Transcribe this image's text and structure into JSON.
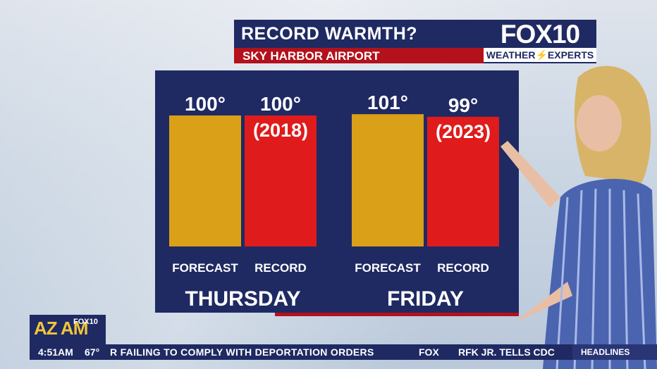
{
  "header": {
    "title": "RECORD WARMTH?",
    "subtitle": "SKY HARBOR AIRPORT",
    "logo_main": "FOX10",
    "logo_sub": "WEATHER⚡EXPERTS"
  },
  "chart_data": {
    "type": "bar",
    "groups": [
      "THURSDAY",
      "FRIDAY"
    ],
    "categories": [
      "FORECAST",
      "RECORD"
    ],
    "series": [
      {
        "values": [
          100,
          101
        ],
        "color": "#d9a018"
      },
      {
        "values": [
          100,
          99
        ],
        "color": "#e01b1b"
      }
    ],
    "value_labels": [
      [
        "100°",
        "100°"
      ],
      [
        "101°",
        "99°"
      ]
    ],
    "record_years": [
      "(2018)",
      "(2023)"
    ]
  },
  "ticker": {
    "show_logo": "AZ AM",
    "show_logo_fox": "FOX10",
    "time": "4:51AM",
    "temp": "67°",
    "story1": "R FAILING TO COMPLY WITH DEPORTATION ORDERS",
    "network": "FOX",
    "story2": "RFK JR. TELLS CDC",
    "section": "HEADLINES"
  }
}
